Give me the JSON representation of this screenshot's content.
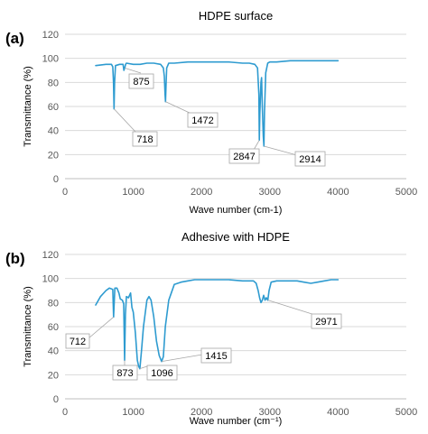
{
  "chart_data": [
    {
      "type": "line",
      "panel_label": "(a)",
      "title": "HDPE surface",
      "xlabel": "Wave number (cm-1)",
      "ylabel": "Transmittance (%)",
      "xlim": [
        0,
        5000
      ],
      "ylim": [
        0,
        120
      ],
      "x_ticks": [
        0,
        1000,
        2000,
        3000,
        4000,
        5000
      ],
      "y_ticks": [
        0,
        20,
        40,
        60,
        80,
        100,
        120
      ],
      "grid": "horizontal",
      "color": "#2e9bd0",
      "series": [
        {
          "x": [
            450,
            600,
            680,
            700,
            710,
            718,
            726,
            740,
            800,
            850,
            862,
            875,
            888,
            900,
            1000,
            1100,
            1200,
            1300,
            1400,
            1440,
            1455,
            1465,
            1472,
            1480,
            1490,
            1520,
            1600,
            1800,
            2000,
            2200,
            2400,
            2600,
            2700,
            2780,
            2820,
            2840,
            2847,
            2854,
            2870,
            2880,
            2890,
            2905,
            2914,
            2922,
            2940,
            2970,
            3000,
            3100,
            3300,
            3500,
            3700,
            3900,
            4000
          ],
          "y": [
            94,
            95,
            95,
            93,
            80,
            58,
            80,
            94,
            95,
            95,
            90,
            92,
            95,
            96,
            95,
            95,
            96,
            96,
            95,
            92,
            85,
            70,
            64,
            78,
            92,
            96,
            96,
            97,
            97,
            97,
            97,
            96,
            96,
            95,
            92,
            70,
            32,
            55,
            80,
            84,
            60,
            35,
            27,
            55,
            88,
            96,
            97,
            97,
            98,
            98,
            98,
            98,
            98
          ]
        }
      ],
      "annotations": [
        {
          "text": "875",
          "x": 875,
          "y": 92
        },
        {
          "text": "718",
          "x": 718,
          "y": 58
        },
        {
          "text": "1472",
          "x": 1472,
          "y": 64
        },
        {
          "text": "2847",
          "x": 2847,
          "y": 32
        },
        {
          "text": "2914",
          "x": 2914,
          "y": 27
        }
      ]
    },
    {
      "type": "line",
      "panel_label": "(b)",
      "title": "Adhesive with HDPE",
      "xlabel": "Wave number (cm⁻¹)",
      "ylabel": "Transmittance (%)",
      "xlim": [
        0,
        5000
      ],
      "ylim": [
        0,
        120
      ],
      "x_ticks": [
        0,
        1000,
        2000,
        3000,
        4000,
        5000
      ],
      "y_ticks": [
        0,
        20,
        40,
        60,
        80,
        100,
        120
      ],
      "grid": "horizontal",
      "color": "#2e9bd0",
      "series": [
        {
          "x": [
            450,
            520,
            600,
            650,
            700,
            712,
            730,
            760,
            790,
            810,
            840,
            860,
            873,
            885,
            900,
            930,
            960,
            980,
            1000,
            1030,
            1060,
            1080,
            1096,
            1120,
            1150,
            1200,
            1230,
            1260,
            1300,
            1340,
            1380,
            1415,
            1440,
            1470,
            1520,
            1600,
            1700,
            1800,
            1900,
            2000,
            2200,
            2400,
            2600,
            2700,
            2760,
            2800,
            2830,
            2850,
            2870,
            2890,
            2910,
            2930,
            2950,
            2971,
            2990,
            3020,
            3100,
            3300,
            3400,
            3500,
            3600,
            3700,
            3800,
            3900,
            4000
          ],
          "y": [
            78,
            85,
            90,
            92,
            91,
            68,
            92,
            92,
            88,
            83,
            82,
            79,
            32,
            70,
            85,
            84,
            88,
            76,
            72,
            55,
            32,
            27,
            25,
            40,
            60,
            82,
            85,
            82,
            68,
            48,
            36,
            31,
            35,
            60,
            82,
            95,
            97,
            98,
            99,
            99,
            99,
            99,
            98,
            98,
            98,
            96,
            90,
            84,
            80,
            82,
            86,
            82,
            84,
            82,
            90,
            97,
            98,
            98,
            98,
            97,
            96,
            97,
            98,
            99,
            99
          ]
        }
      ],
      "annotations": [
        {
          "text": "712",
          "x": 712,
          "y": 68
        },
        {
          "text": "873",
          "x": 873,
          "y": 32
        },
        {
          "text": "1096",
          "x": 1096,
          "y": 25
        },
        {
          "text": "1415",
          "x": 1415,
          "y": 31
        },
        {
          "text": "2971",
          "x": 2971,
          "y": 82
        }
      ]
    }
  ]
}
